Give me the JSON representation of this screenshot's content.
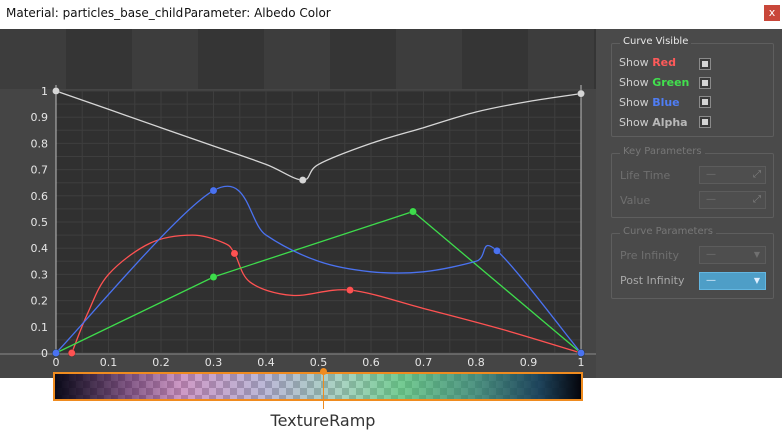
{
  "window": {
    "material_label": "Material: particles_base_child",
    "parameter_label": "Parameter: Albedo Color",
    "close_label": "x"
  },
  "chart_data": {
    "type": "line",
    "x_ticks": [
      "0",
      "0.1",
      "0.2",
      "0.3",
      "0.4",
      "0.5",
      "0.6",
      "0.7",
      "0.8",
      "0.9",
      "1"
    ],
    "y_ticks": [
      "0",
      "0.1",
      "0.2",
      "0.3",
      "0.4",
      "0.5",
      "0.6",
      "0.7",
      "0.8",
      "0.9",
      "1"
    ],
    "xlim": [
      0,
      1
    ],
    "ylim": [
      0,
      1
    ],
    "grid": true,
    "series": [
      {
        "color": "#d6d6d6",
        "keys": [
          [
            0,
            1
          ],
          [
            0.47,
            0.66
          ],
          [
            1,
            0.99
          ]
        ],
        "curve": [
          [
            0,
            1
          ],
          [
            0.1,
            0.93
          ],
          [
            0.2,
            0.86
          ],
          [
            0.3,
            0.79
          ],
          [
            0.4,
            0.72
          ],
          [
            0.47,
            0.66
          ],
          [
            0.5,
            0.72
          ],
          [
            0.6,
            0.8
          ],
          [
            0.7,
            0.86
          ],
          [
            0.8,
            0.92
          ],
          [
            0.9,
            0.96
          ],
          [
            1,
            0.99
          ]
        ]
      },
      {
        "name": "Red",
        "color": "#ff5252",
        "keys": [
          [
            0.03,
            0
          ],
          [
            0.34,
            0.38
          ],
          [
            0.56,
            0.24
          ],
          [
            1,
            0
          ]
        ],
        "curve": [
          [
            0.03,
            0
          ],
          [
            0.06,
            0.15
          ],
          [
            0.1,
            0.3
          ],
          [
            0.18,
            0.42
          ],
          [
            0.26,
            0.45
          ],
          [
            0.32,
            0.42
          ],
          [
            0.34,
            0.38
          ],
          [
            0.37,
            0.27
          ],
          [
            0.45,
            0.22
          ],
          [
            0.56,
            0.24
          ],
          [
            0.7,
            0.17
          ],
          [
            0.85,
            0.09
          ],
          [
            1,
            0
          ]
        ]
      },
      {
        "name": "Green",
        "color": "#3edc4c",
        "keys": [
          [
            0,
            0
          ],
          [
            0.3,
            0.29
          ],
          [
            0.68,
            0.54
          ],
          [
            1,
            0
          ]
        ],
        "curve": [
          [
            0,
            0
          ],
          [
            0.3,
            0.29
          ],
          [
            0.68,
            0.54
          ],
          [
            1,
            0
          ]
        ]
      },
      {
        "name": "Blue",
        "color": "#4a72f0",
        "keys": [
          [
            0,
            0
          ],
          [
            0.3,
            0.62
          ],
          [
            0.84,
            0.39
          ],
          [
            1,
            0
          ]
        ],
        "curve": [
          [
            0,
            0
          ],
          [
            0.3,
            0.62
          ],
          [
            0.4,
            0.45
          ],
          [
            0.5,
            0.35
          ],
          [
            0.6,
            0.31
          ],
          [
            0.7,
            0.31
          ],
          [
            0.8,
            0.35
          ],
          [
            0.84,
            0.39
          ],
          [
            1,
            0
          ]
        ]
      }
    ]
  },
  "panel": {
    "curve_visible": {
      "title": "Curve Visible",
      "rows": [
        {
          "prefix": "Show",
          "channel": "Red",
          "color": "#ff5a5a"
        },
        {
          "prefix": "Show",
          "channel": "Green",
          "color": "#42e04e"
        },
        {
          "prefix": "Show",
          "channel": "Blue",
          "color": "#4f7df4"
        },
        {
          "prefix": "Show",
          "channel": "Alpha",
          "color": "#b8b8b8"
        }
      ]
    },
    "key_parameters": {
      "title": "Key Parameters",
      "life_time_label": "Life Time",
      "life_time_value": "—",
      "value_label": "Value",
      "value_value": "—"
    },
    "curve_parameters": {
      "title": "Curve Parameters",
      "pre_infinity_label": "Pre Infinity",
      "pre_infinity_value": "—",
      "post_infinity_label": "Post Infinity",
      "post_infinity_value": "—"
    }
  },
  "ramp": {
    "callout_label": "TextureRamp"
  }
}
